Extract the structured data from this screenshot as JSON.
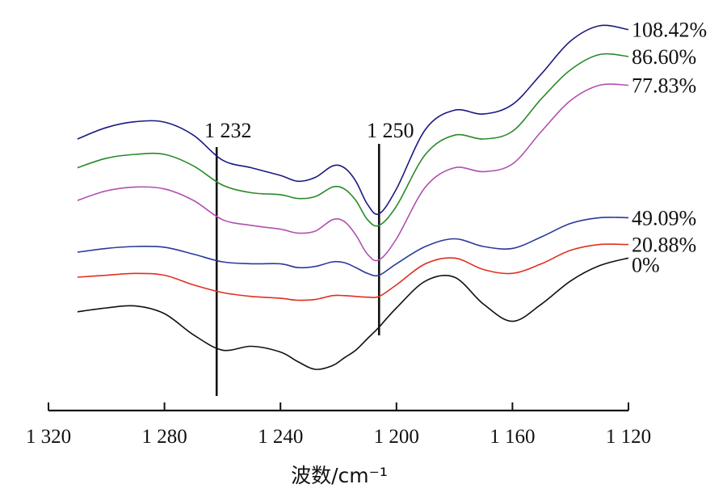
{
  "chart_data": {
    "type": "line",
    "xlabel": "波数/cm⁻¹",
    "xlim": [
      1320,
      1120
    ],
    "x_reversed": true,
    "xticks": [
      {
        "value": 1320,
        "label": "1 320"
      },
      {
        "value": 1280,
        "label": "1 280"
      },
      {
        "value": 1240,
        "label": "1 240"
      },
      {
        "value": 1200,
        "label": "1 200"
      },
      {
        "value": 1160,
        "label": "1 160"
      },
      {
        "value": 1120,
        "label": "1 120"
      }
    ],
    "y_axis_shown": false,
    "grid": false,
    "x": [
      1310,
      1300,
      1290,
      1280,
      1270,
      1260,
      1250,
      1240,
      1234,
      1228,
      1222,
      1218,
      1214,
      1210,
      1206,
      1200,
      1190,
      1180,
      1170,
      1160,
      1150,
      1140,
      1130,
      1120
    ],
    "series": [
      {
        "name": "108.42%",
        "color": "#1a1a80",
        "values": [
          0.68,
          0.71,
          0.725,
          0.724,
          0.69,
          0.625,
          0.605,
          0.585,
          0.57,
          0.58,
          0.61,
          0.605,
          0.57,
          0.51,
          0.485,
          0.55,
          0.705,
          0.755,
          0.745,
          0.77,
          0.85,
          0.935,
          0.975,
          0.965
        ]
      },
      {
        "name": "86.60%",
        "color": "#2a8a2a",
        "values": [
          0.605,
          0.63,
          0.64,
          0.64,
          0.61,
          0.56,
          0.54,
          0.535,
          0.525,
          0.53,
          0.555,
          0.55,
          0.52,
          0.47,
          0.455,
          0.505,
          0.64,
          0.69,
          0.68,
          0.7,
          0.785,
          0.86,
          0.9,
          0.895
        ]
      },
      {
        "name": "77.83%",
        "color": "#b050b0",
        "values": [
          0.52,
          0.545,
          0.555,
          0.55,
          0.52,
          0.47,
          0.455,
          0.445,
          0.435,
          0.44,
          0.47,
          0.465,
          0.43,
          0.38,
          0.365,
          0.42,
          0.555,
          0.605,
          0.595,
          0.615,
          0.7,
          0.78,
          0.82,
          0.82
        ]
      },
      {
        "name": "49.09%",
        "color": "#2a3a9a",
        "values": [
          0.385,
          0.395,
          0.4,
          0.398,
          0.38,
          0.36,
          0.355,
          0.355,
          0.345,
          0.348,
          0.36,
          0.358,
          0.345,
          0.33,
          0.325,
          0.355,
          0.4,
          0.42,
          0.4,
          0.395,
          0.425,
          0.46,
          0.475,
          0.475
        ]
      },
      {
        "name": "20.88%",
        "color": "#e03020",
        "values": [
          0.32,
          0.325,
          0.33,
          0.325,
          0.3,
          0.28,
          0.27,
          0.265,
          0.26,
          0.262,
          0.272,
          0.272,
          0.27,
          0.268,
          0.27,
          0.3,
          0.355,
          0.37,
          0.34,
          0.33,
          0.355,
          0.39,
          0.405,
          0.405
        ]
      },
      {
        "name": "0%",
        "color": "#111111",
        "values": [
          0.23,
          0.24,
          0.245,
          0.225,
          0.17,
          0.13,
          0.14,
          0.125,
          0.1,
          0.08,
          0.09,
          0.11,
          0.13,
          0.16,
          0.19,
          0.24,
          0.31,
          0.32,
          0.25,
          0.205,
          0.25,
          0.31,
          0.35,
          0.37
        ]
      }
    ],
    "annotations": [
      {
        "label": "1 232",
        "x": 1262
      },
      {
        "label": "1 250",
        "x": 1206
      }
    ]
  }
}
